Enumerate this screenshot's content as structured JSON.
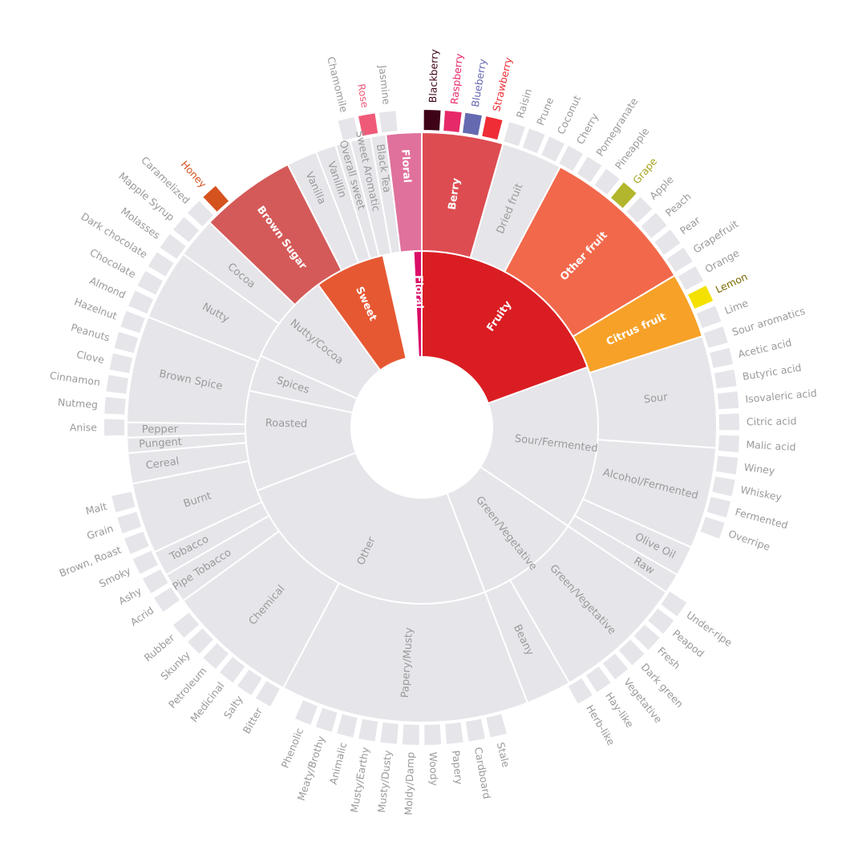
{
  "chart_data": {
    "type": "sunburst",
    "title": "",
    "colors": {
      "inactive_fill": "#e6e5ea",
      "inactive_text": "#9a9a9a",
      "separator": "#ffffff"
    },
    "rings": [
      {
        "level": 1,
        "inner": 88,
        "outer": 220
      },
      {
        "level": 2,
        "inner": 220,
        "outer": 368
      },
      {
        "level": 3,
        "inner": 370,
        "outer": 397
      }
    ],
    "categories": [
      {
        "name": "Fruity",
        "start": 0,
        "end": 70,
        "active": true,
        "color": "#da1d23",
        "text_color": "#ffffff"
      },
      {
        "name": "Floral",
        "start": 357.3,
        "end": 360,
        "active": true,
        "color": "#da0d68",
        "text_color": "#ffffff"
      },
      {
        "name": "Sweet",
        "start": 324,
        "end": 347.3,
        "active": true,
        "color": "#e65832",
        "text_color": "#ffffff"
      },
      {
        "name": "Sour/Fermented",
        "start": 70,
        "end": 124,
        "active": false
      },
      {
        "name": "Green/Vegetative",
        "start": 124,
        "end": 159,
        "active": false
      },
      {
        "name": "Other",
        "start": 159,
        "end": 249,
        "active": false
      },
      {
        "name": "Roasted",
        "start": 249,
        "end": 294,
        "active": false
      },
      {
        "name": "Spices",
        "start": 282,
        "end": 294,
        "active": false
      },
      {
        "name": "Nutty/Cocoa",
        "start": 294,
        "end": 324,
        "active": false
      }
    ],
    "subcategories": [
      {
        "name": "Berry",
        "start": 0,
        "end": 16,
        "active": true,
        "color": "#dd4c51",
        "text_color": "#ffffff"
      },
      {
        "name": "Dried fruit",
        "start": 16,
        "end": 28,
        "active": false
      },
      {
        "name": "Other fruit",
        "start": 28,
        "end": 59,
        "active": true,
        "color": "#f2684b",
        "text_color": "#ffffff"
      },
      {
        "name": "Citrus fruit",
        "start": 59,
        "end": 72,
        "active": true,
        "color": "#f7a128",
        "text_color": "#ffffff"
      },
      {
        "name": "Sour",
        "start": 72,
        "end": 94,
        "active": false
      },
      {
        "name": "Alcohol/Fermented",
        "start": 94,
        "end": 114,
        "active": false
      },
      {
        "name": "Olive Oil",
        "start": 114,
        "end": 120,
        "active": false
      },
      {
        "name": "Raw",
        "start": 120,
        "end": 124,
        "active": false
      },
      {
        "name": "Green/Vegetative",
        "start": 124,
        "end": 150,
        "active": false
      },
      {
        "name": "Beany",
        "start": 150,
        "end": 159,
        "active": false
      },
      {
        "name": "Papery/Musty",
        "start": 159,
        "end": 208,
        "active": false
      },
      {
        "name": "Chemical",
        "start": 208,
        "end": 234,
        "active": false
      },
      {
        "name": "Pipe Tobacco",
        "start": 234,
        "end": 240,
        "active": false
      },
      {
        "name": "Tobacco",
        "start": 240,
        "end": 245,
        "active": false
      },
      {
        "name": "Burnt",
        "start": 245,
        "end": 259,
        "active": false
      },
      {
        "name": "Cereal",
        "start": 259,
        "end": 265,
        "active": false
      },
      {
        "name": "Pungent",
        "start": 265,
        "end": 268,
        "active": false
      },
      {
        "name": "Pepper",
        "start": 268,
        "end": 271,
        "active": false
      },
      {
        "name": "Brown Spice",
        "start": 271,
        "end": 292,
        "active": false
      },
      {
        "name": "Nutty",
        "start": 292,
        "end": 306,
        "active": false
      },
      {
        "name": "Cocoa",
        "start": 306,
        "end": 314,
        "active": false
      },
      {
        "name": "Brown Sugar",
        "start": 314,
        "end": 333,
        "active": true,
        "color": "#d45a59",
        "text_color": "#ffffff"
      },
      {
        "name": "Vanilla",
        "start": 333,
        "end": 339,
        "active": false
      },
      {
        "name": "Vanillin",
        "start": 339,
        "end": 343,
        "active": false
      },
      {
        "name": "Overall sweet",
        "start": 343,
        "end": 346,
        "active": false
      },
      {
        "name": "Sweet Aromatic",
        "start": 346,
        "end": 350,
        "active": false
      },
      {
        "name": "Black Tea",
        "start": 350,
        "end": 353,
        "active": false
      },
      {
        "name": "Floral",
        "start": 353,
        "end": 360,
        "active": true,
        "color": "#e0719c",
        "text_color": "#ffffff"
      }
    ],
    "flavors": [
      {
        "name": "Blackberry",
        "angle": 1.9,
        "active": true,
        "color": "#3e0317",
        "text_color": "#3e0317"
      },
      {
        "name": "Raspberry",
        "angle": 5.7,
        "active": true,
        "color": "#e62969",
        "text_color": "#e62969"
      },
      {
        "name": "Blueberry",
        "angle": 9.4,
        "active": true,
        "color": "#6569b0",
        "text_color": "#6569b0"
      },
      {
        "name": "Strawberry",
        "angle": 13.2,
        "active": true,
        "color": "#ef2d36",
        "text_color": "#ef2d36"
      },
      {
        "name": "Raisin",
        "angle": 17.5,
        "active": false
      },
      {
        "name": "Prune",
        "angle": 21.3,
        "active": false
      },
      {
        "name": "Coconut",
        "angle": 25.2,
        "active": false
      },
      {
        "name": "Cherry",
        "angle": 29,
        "active": false
      },
      {
        "name": "Pomegranate",
        "angle": 33,
        "active": false
      },
      {
        "name": "Pineapple",
        "angle": 37,
        "active": false
      },
      {
        "name": "Grape",
        "angle": 41,
        "active": true,
        "color": "#b2b62c",
        "text_color": "#a4a51e"
      },
      {
        "name": "Apple",
        "angle": 45,
        "active": false
      },
      {
        "name": "Peach",
        "angle": 49,
        "active": false
      },
      {
        "name": "Pear",
        "angle": 53,
        "active": false
      },
      {
        "name": "Grapefruit",
        "angle": 57,
        "active": false
      },
      {
        "name": "Orange",
        "angle": 61,
        "active": false
      },
      {
        "name": "Lemon",
        "angle": 65,
        "active": true,
        "color": "#f4e100",
        "text_color": "#7c6b00"
      },
      {
        "name": "Lime",
        "angle": 69,
        "active": false
      },
      {
        "name": "Sour aromatics",
        "angle": 73,
        "active": false
      },
      {
        "name": "Acetic acid",
        "angle": 77,
        "active": false
      },
      {
        "name": "Butyric acid",
        "angle": 81,
        "active": false
      },
      {
        "name": "Isovaleric acid",
        "angle": 85,
        "active": false
      },
      {
        "name": "Citric acid",
        "angle": 89,
        "active": false
      },
      {
        "name": "Malic acid",
        "angle": 93,
        "active": false
      },
      {
        "name": "Winey",
        "angle": 97,
        "active": false
      },
      {
        "name": "Whiskey",
        "angle": 101,
        "active": false
      },
      {
        "name": "Fermented",
        "angle": 105,
        "active": false
      },
      {
        "name": "Overripe",
        "angle": 109,
        "active": false
      },
      {
        "name": "Under-ripe",
        "angle": 125,
        "active": false
      },
      {
        "name": "Peapod",
        "angle": 129,
        "active": false
      },
      {
        "name": "Fresh",
        "angle": 133,
        "active": false
      },
      {
        "name": "Dark green",
        "angle": 137,
        "active": false
      },
      {
        "name": "Vegetative",
        "angle": 141,
        "active": false
      },
      {
        "name": "Hay-like",
        "angle": 145,
        "active": false
      },
      {
        "name": "Herb-like",
        "angle": 149,
        "active": false
      },
      {
        "name": "Stale",
        "angle": 166,
        "active": false
      },
      {
        "name": "Cardboard",
        "angle": 170,
        "active": false
      },
      {
        "name": "Papery",
        "angle": 174,
        "active": false
      },
      {
        "name": "Woody",
        "angle": 178,
        "active": false
      },
      {
        "name": "Moldy/Damp",
        "angle": 182,
        "active": false
      },
      {
        "name": "Musty/Dusty",
        "angle": 186,
        "active": false
      },
      {
        "name": "Musty/Earthy",
        "angle": 190,
        "active": false
      },
      {
        "name": "Animalic",
        "angle": 194,
        "active": false
      },
      {
        "name": "Meaty/Brothy",
        "angle": 198,
        "active": false
      },
      {
        "name": "Phenolic",
        "angle": 202,
        "active": false
      },
      {
        "name": "Bitter",
        "angle": 210,
        "active": false
      },
      {
        "name": "Salty",
        "angle": 214,
        "active": false
      },
      {
        "name": "Medicinal",
        "angle": 218,
        "active": false
      },
      {
        "name": "Petroleum",
        "angle": 222,
        "active": false
      },
      {
        "name": "Skunky",
        "angle": 226,
        "active": false
      },
      {
        "name": "Rubber",
        "angle": 230,
        "active": false
      },
      {
        "name": "Acrid",
        "angle": 236,
        "active": false
      },
      {
        "name": "Ashy",
        "angle": 240,
        "active": false
      },
      {
        "name": "Smoky",
        "angle": 244,
        "active": false
      },
      {
        "name": "Brown, Roast",
        "angle": 248,
        "active": false
      },
      {
        "name": "Grain",
        "angle": 252,
        "active": false
      },
      {
        "name": "Malt",
        "angle": 256,
        "active": false
      },
      {
        "name": "Anise",
        "angle": 270,
        "active": false
      },
      {
        "name": "Nutmeg",
        "angle": 274,
        "active": false
      },
      {
        "name": "Cinnamon",
        "angle": 278,
        "active": false
      },
      {
        "name": "Clove",
        "angle": 282,
        "active": false
      },
      {
        "name": "Peanuts",
        "angle": 286,
        "active": false
      },
      {
        "name": "Hazelnut",
        "angle": 290,
        "active": false
      },
      {
        "name": "Almond",
        "angle": 294,
        "active": false
      },
      {
        "name": "Chocolate",
        "angle": 298,
        "active": false
      },
      {
        "name": "Dark chocolate",
        "angle": 302,
        "active": false
      },
      {
        "name": "Molasses",
        "angle": 306,
        "active": false
      },
      {
        "name": "Mapple Syrup",
        "angle": 310,
        "active": false
      },
      {
        "name": "Caramelized",
        "angle": 314,
        "active": false
      },
      {
        "name": "Honey",
        "angle": 318,
        "active": true,
        "color": "#d5531f",
        "text_color": "#d5531f"
      },
      {
        "name": "Chamomile",
        "angle": 346.2,
        "active": false
      },
      {
        "name": "Rose",
        "angle": 350,
        "active": true,
        "color": "#ef5a78",
        "text_color": "#ef5a78"
      },
      {
        "name": "Jasmine",
        "angle": 353.8,
        "active": false
      }
    ]
  }
}
